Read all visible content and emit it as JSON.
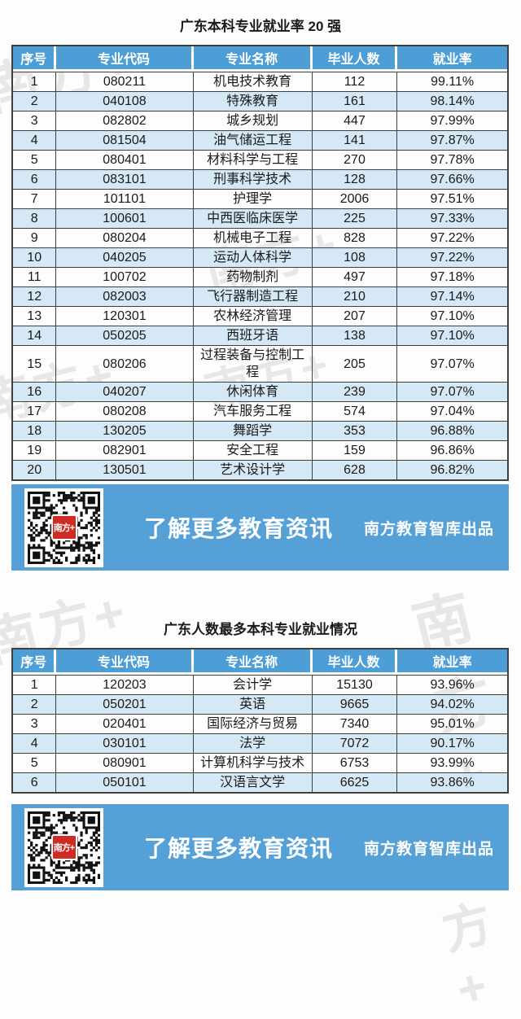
{
  "colors": {
    "accent": "#4d9ed6",
    "banner_blue": "#55a1d7",
    "row_alt": "#d5e8f5",
    "border": "#3f3f3f",
    "qr_red": "#cf2b24",
    "watermark_gray": "#e7e7e7"
  },
  "watermark_text": "南方+",
  "banner": {
    "cta": "了解更多教育资讯",
    "credit": "南方教育智库出品",
    "qr_logo": "南方+"
  },
  "chart_data": [
    {
      "type": "table",
      "title": "广东本科专业就业率 20 强",
      "columns": [
        "序号",
        "专业代码",
        "专业名称",
        "毕业人数",
        "就业率"
      ],
      "rows": [
        [
          "1",
          "080211",
          "机电技术教育",
          "112",
          "99.11%"
        ],
        [
          "2",
          "040108",
          "特殊教育",
          "161",
          "98.14%"
        ],
        [
          "3",
          "082802",
          "城乡规划",
          "447",
          "97.99%"
        ],
        [
          "4",
          "081504",
          "油气储运工程",
          "141",
          "97.87%"
        ],
        [
          "5",
          "080401",
          "材料科学与工程",
          "270",
          "97.78%"
        ],
        [
          "6",
          "083101",
          "刑事科学技术",
          "128",
          "97.66%"
        ],
        [
          "7",
          "101101",
          "护理学",
          "2006",
          "97.51%"
        ],
        [
          "8",
          "100601",
          "中西医临床医学",
          "225",
          "97.33%"
        ],
        [
          "9",
          "080204",
          "机械电子工程",
          "828",
          "97.22%"
        ],
        [
          "10",
          "040205",
          "运动人体科学",
          "108",
          "97.22%"
        ],
        [
          "11",
          "100702",
          "药物制剂",
          "497",
          "97.18%"
        ],
        [
          "12",
          "082003",
          "飞行器制造工程",
          "210",
          "97.14%"
        ],
        [
          "13",
          "120301",
          "农林经济管理",
          "207",
          "97.10%"
        ],
        [
          "14",
          "050205",
          "西班牙语",
          "138",
          "97.10%"
        ],
        [
          "15",
          "080206",
          "过程装备与控制工程",
          "205",
          "97.07%"
        ],
        [
          "16",
          "040207",
          "休闲体育",
          "239",
          "97.07%"
        ],
        [
          "17",
          "080208",
          "汽车服务工程",
          "574",
          "97.04%"
        ],
        [
          "18",
          "130205",
          "舞蹈学",
          "353",
          "96.88%"
        ],
        [
          "19",
          "082901",
          "安全工程",
          "159",
          "96.86%"
        ],
        [
          "20",
          "130501",
          "艺术设计学",
          "628",
          "96.82%"
        ]
      ]
    },
    {
      "type": "table",
      "title": "广东人数最多本科专业就业情况",
      "columns": [
        "序号",
        "专业代码",
        "专业名称",
        "毕业人数",
        "就业率"
      ],
      "rows": [
        [
          "1",
          "120203",
          "会计学",
          "15130",
          "93.96%"
        ],
        [
          "2",
          "050201",
          "英语",
          "9665",
          "94.02%"
        ],
        [
          "3",
          "020401",
          "国际经济与贸易",
          "7340",
          "95.01%"
        ],
        [
          "4",
          "030101",
          "法学",
          "7072",
          "90.17%"
        ],
        [
          "5",
          "080901",
          "计算机科学与技术",
          "6753",
          "93.99%"
        ],
        [
          "6",
          "050101",
          "汉语言文学",
          "6625",
          "93.86%"
        ]
      ]
    }
  ]
}
